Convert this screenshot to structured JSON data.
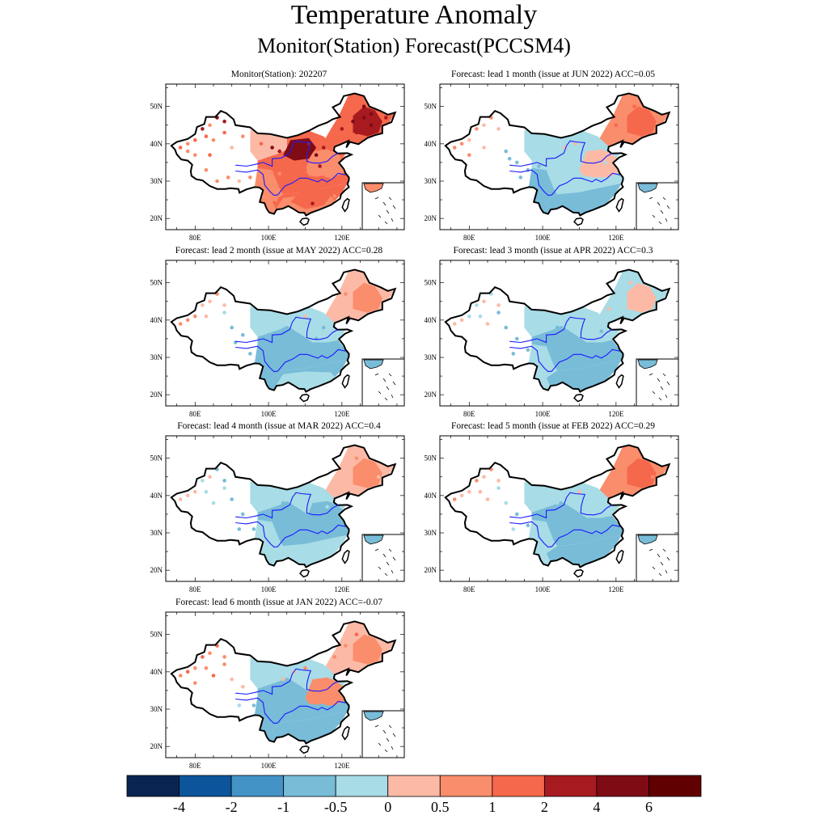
{
  "title": "Temperature Anomaly",
  "subtitle": "Monitor(Station)   Forecast(PCCSM4)",
  "axis": {
    "lon_ticks": [
      "80E",
      "100E",
      "120E"
    ],
    "lat_ticks": [
      "50N",
      "40N",
      "30N",
      "20N"
    ]
  },
  "panels": [
    {
      "id": "monitor",
      "title": "Monitor(Station): 202207",
      "pattern": "monitor"
    },
    {
      "id": "lead1",
      "title": "Forecast: lead 1 month (issue at JUN 2022) ACC=0.05",
      "pattern": "lead1"
    },
    {
      "id": "lead2",
      "title": "Forecast: lead 2 month (issue at MAY 2022) ACC=0.28",
      "pattern": "lead2"
    },
    {
      "id": "lead3",
      "title": "Forecast: lead 3 month (issue at APR 2022) ACC=0.3",
      "pattern": "lead3"
    },
    {
      "id": "lead4",
      "title": "Forecast: lead 4 month (issue at MAR 2022) ACC=0.4",
      "pattern": "lead4"
    },
    {
      "id": "lead5",
      "title": "Forecast: lead 5 month (issue at FEB 2022) ACC=0.29",
      "pattern": "lead5"
    },
    {
      "id": "lead6",
      "title": "Forecast: lead 6 month (issue at JAN 2022) ACC=-0.07",
      "pattern": "lead6"
    }
  ],
  "colorbar": {
    "colors": [
      "#0a2451",
      "#0c549c",
      "#4393c7",
      "#78bcd8",
      "#a8dce6",
      "#fcbaa6",
      "#fa8d6c",
      "#f6684c",
      "#a71b20",
      "#7f0c15",
      "#610000"
    ],
    "labels": [
      "-4",
      "-2",
      "-1",
      "-0.5",
      "0",
      "0.5",
      "1",
      "2",
      "4",
      "6"
    ]
  }
}
